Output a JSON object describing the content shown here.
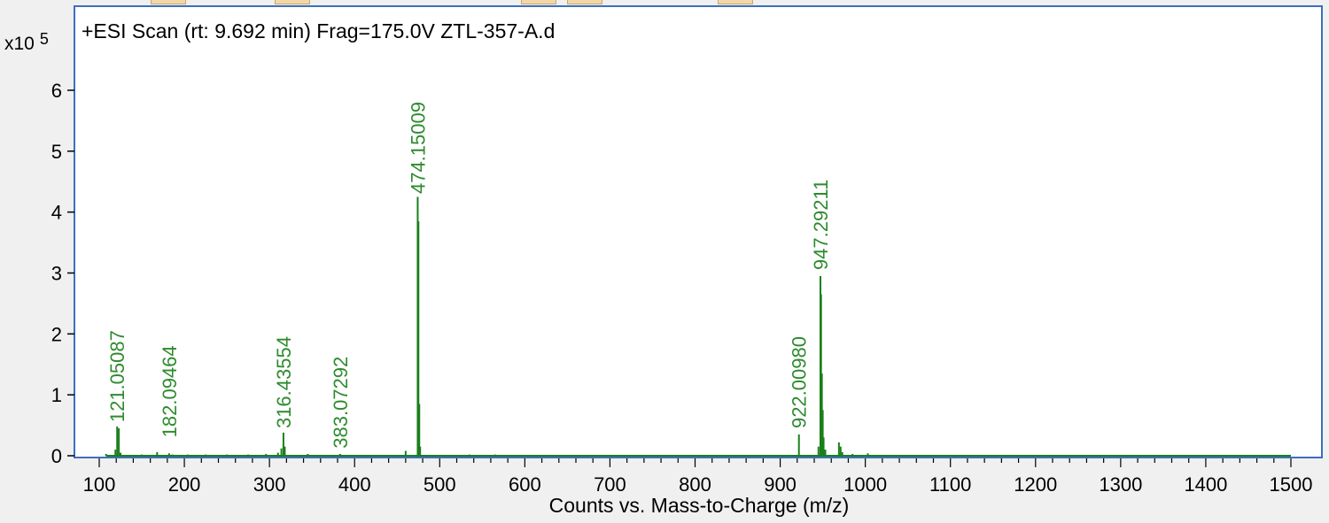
{
  "chart_data": {
    "type": "bar",
    "title": "+ESI Scan (rt: 9.692 min) Frag=175.0V ZTL-357-A.d",
    "xlabel": "Counts vs. Mass-to-Charge (m/z)",
    "ylabel": "",
    "y_multiplier_label": "x10",
    "y_multiplier_exponent": "5",
    "xlim": [
      65,
      1510
    ],
    "ylim": [
      0,
      6.6
    ],
    "x_ticks": [
      100,
      200,
      300,
      400,
      500,
      600,
      700,
      800,
      900,
      1000,
      1100,
      1200,
      1300,
      1400,
      1500
    ],
    "y_ticks": [
      0,
      1,
      2,
      3,
      4,
      5,
      6
    ],
    "grid": false,
    "series_color": "#1a7f1a",
    "label_color": "#2e8b2e",
    "axis_color": "#3c6fbf",
    "peaks": [
      {
        "mz": 108,
        "intensity": 0.03
      },
      {
        "mz": 119,
        "intensity": 0.1
      },
      {
        "mz": 121.05087,
        "intensity": 0.48
      },
      {
        "mz": 123,
        "intensity": 0.45
      },
      {
        "mz": 125,
        "intensity": 0.05
      },
      {
        "mz": 150,
        "intensity": 0.02
      },
      {
        "mz": 168,
        "intensity": 0.06
      },
      {
        "mz": 182.09464,
        "intensity": 0.04
      },
      {
        "mz": 186,
        "intensity": 0.02
      },
      {
        "mz": 204,
        "intensity": 0.02
      },
      {
        "mz": 225,
        "intensity": 0.02
      },
      {
        "mz": 250,
        "intensity": 0.02
      },
      {
        "mz": 275,
        "intensity": 0.02
      },
      {
        "mz": 296,
        "intensity": 0.03
      },
      {
        "mz": 310,
        "intensity": 0.05
      },
      {
        "mz": 314,
        "intensity": 0.12
      },
      {
        "mz": 316.43554,
        "intensity": 0.38
      },
      {
        "mz": 318,
        "intensity": 0.15
      },
      {
        "mz": 345,
        "intensity": 0.03
      },
      {
        "mz": 383.07292,
        "intensity": 0.03
      },
      {
        "mz": 460,
        "intensity": 0.08
      },
      {
        "mz": 474.15009,
        "intensity": 4.25
      },
      {
        "mz": 475,
        "intensity": 3.85
      },
      {
        "mz": 476,
        "intensity": 0.85
      },
      {
        "mz": 477,
        "intensity": 0.15
      },
      {
        "mz": 535,
        "intensity": 0.02
      },
      {
        "mz": 565,
        "intensity": 0.02
      },
      {
        "mz": 922.0098,
        "intensity": 0.35
      },
      {
        "mz": 945,
        "intensity": 0.15
      },
      {
        "mz": 947.29211,
        "intensity": 2.95
      },
      {
        "mz": 948,
        "intensity": 2.65
      },
      {
        "mz": 949,
        "intensity": 1.35
      },
      {
        "mz": 950,
        "intensity": 0.75
      },
      {
        "mz": 951,
        "intensity": 0.3
      },
      {
        "mz": 953,
        "intensity": 0.1
      },
      {
        "mz": 969,
        "intensity": 0.22
      },
      {
        "mz": 971,
        "intensity": 0.15
      },
      {
        "mz": 973,
        "intensity": 0.06
      },
      {
        "mz": 985,
        "intensity": 0.03
      },
      {
        "mz": 1003,
        "intensity": 0.04
      }
    ],
    "peak_labels": [
      {
        "mz": 121.05087,
        "text": "121.05087",
        "label_base": 0.55
      },
      {
        "mz": 182.09464,
        "text": "182.09464",
        "label_base": 0.3
      },
      {
        "mz": 316.43554,
        "text": "316.43554",
        "label_base": 0.45
      },
      {
        "mz": 383.07292,
        "text": "383.07292",
        "label_base": 0.12
      },
      {
        "mz": 474.15009,
        "text": "474.15009",
        "label_base": 4.3
      },
      {
        "mz": 922.0098,
        "text": "922.00980",
        "label_base": 0.45
      },
      {
        "mz": 947.29211,
        "text": "947.29211",
        "label_base": 3.05
      }
    ]
  }
}
